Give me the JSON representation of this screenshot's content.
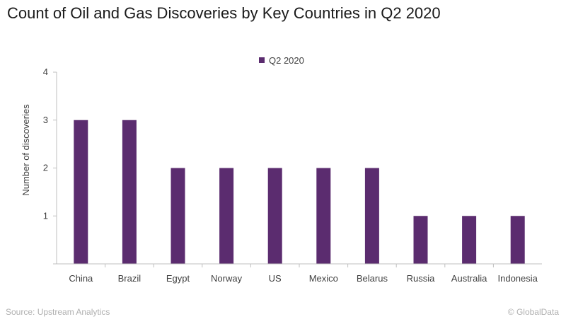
{
  "chart_data": {
    "type": "bar",
    "title": "Count of Oil and Gas Discoveries by Key Countries in Q2 2020",
    "xlabel": "",
    "ylabel": "Number of discoveries",
    "categories": [
      "China",
      "Brazil",
      "Egypt",
      "Norway",
      "US",
      "Mexico",
      "Belarus",
      "Russia",
      "Australia",
      "Indonesia"
    ],
    "series": [
      {
        "name": "Q2 2020",
        "values": [
          3,
          3,
          2,
          2,
          2,
          2,
          2,
          1,
          1,
          1
        ],
        "color": "#5b2c6f"
      }
    ],
    "ylim": [
      0,
      4
    ],
    "yticks": [
      "",
      "1",
      "2",
      "3",
      "4"
    ],
    "grid": false,
    "legend": "top-center"
  },
  "footer": {
    "source": "Source: Upstream Analytics",
    "credit": "© GlobalData"
  }
}
